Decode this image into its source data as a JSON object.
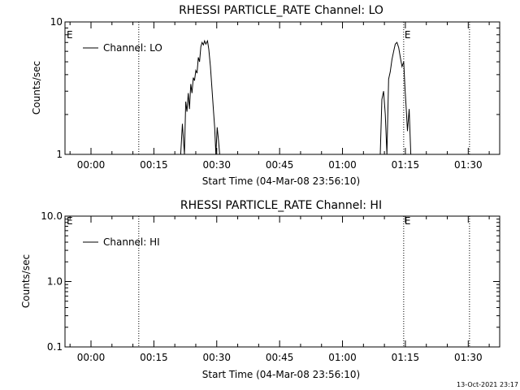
{
  "chart_data": [
    {
      "type": "line",
      "title": "RHESSI PARTICLE_RATE Channel: LO",
      "xlabel": "Start Time (04-Mar-08 23:56:10)",
      "ylabel": "Counts/sec",
      "yscale": "log",
      "ylim": [
        1,
        10
      ],
      "xlim_minutes": [
        -6.2,
        97.5
      ],
      "x_tick_labels": [
        "00:00",
        "00:15",
        "00:30",
        "00:45",
        "01:00",
        "01:15",
        "01:30"
      ],
      "x_tick_values_min": [
        0,
        15,
        30,
        45,
        60,
        75,
        90
      ],
      "y_tick_labels": [
        "10",
        "1"
      ],
      "y_tick_values": [
        10,
        1
      ],
      "grid": false,
      "legend": {
        "position": "top-left",
        "entries": [
          "Channel: LO"
        ]
      },
      "annotations": [
        {
          "text": "E",
          "x_min": -6.0
        },
        {
          "text": "E",
          "x_min": 74.6
        }
      ],
      "vlines_min": [
        11.4,
        74.6,
        90.3
      ],
      "series": [
        {
          "name": "Channel: LO",
          "x": [
            21.4,
            21.8,
            22.3,
            22.6,
            22.9,
            23.2,
            23.5,
            23.8,
            24.1,
            24.4,
            24.7,
            25.0,
            25.3,
            25.6,
            25.9,
            26.2,
            26.5,
            26.8,
            27.1,
            27.4,
            27.8,
            28.1,
            28.5,
            28.9,
            29.2,
            29.5,
            29.8,
            30.1,
            30.4,
            30.7,
            69.0,
            69.4,
            69.8,
            70.2,
            70.6,
            71.0,
            71.4,
            71.8,
            72.2,
            72.6,
            73.0,
            73.4,
            73.8,
            74.2,
            74.6,
            74.9,
            75.2,
            75.5,
            75.9,
            76.3
          ],
          "y": [
            1.0,
            1.7,
            1.0,
            2.5,
            2.1,
            2.9,
            2.2,
            3.4,
            2.9,
            3.8,
            3.6,
            4.3,
            4.1,
            5.4,
            5.0,
            6.5,
            7.0,
            6.7,
            7.2,
            6.8,
            7.2,
            6.2,
            4.6,
            3.0,
            2.2,
            1.6,
            1.0,
            1.6,
            1.3,
            1.0,
            1.0,
            2.6,
            3.0,
            2.0,
            1.0,
            3.7,
            4.2,
            5.2,
            6.0,
            6.8,
            7.0,
            6.4,
            5.4,
            4.6,
            5.0,
            3.2,
            2.2,
            1.5,
            2.2,
            1.0
          ]
        }
      ]
    },
    {
      "type": "line",
      "title": "RHESSI PARTICLE_RATE Channel: HI",
      "xlabel": "Start Time (04-Mar-08 23:56:10)",
      "ylabel": "Counts/sec",
      "yscale": "log",
      "ylim": [
        0.1,
        10
      ],
      "xlim_minutes": [
        -6.2,
        97.5
      ],
      "x_tick_labels": [
        "00:00",
        "00:15",
        "00:30",
        "00:45",
        "01:00",
        "01:15",
        "01:30"
      ],
      "x_tick_values_min": [
        0,
        15,
        30,
        45,
        60,
        75,
        90
      ],
      "y_tick_labels": [
        "10.0",
        "1.0",
        "0.1"
      ],
      "y_tick_values": [
        10,
        1,
        0.1
      ],
      "grid": false,
      "legend": {
        "position": "top-left",
        "entries": [
          "Channel: HI"
        ]
      },
      "annotations": [
        {
          "text": "E",
          "x_min": -6.0
        },
        {
          "text": "E",
          "x_min": 74.6
        }
      ],
      "vlines_min": [
        11.4,
        74.6,
        90.3
      ],
      "series": [
        {
          "name": "Channel: HI",
          "x": [],
          "y": []
        }
      ]
    }
  ],
  "footer": {
    "timestamp": "13-Oct-2021 23:17"
  }
}
